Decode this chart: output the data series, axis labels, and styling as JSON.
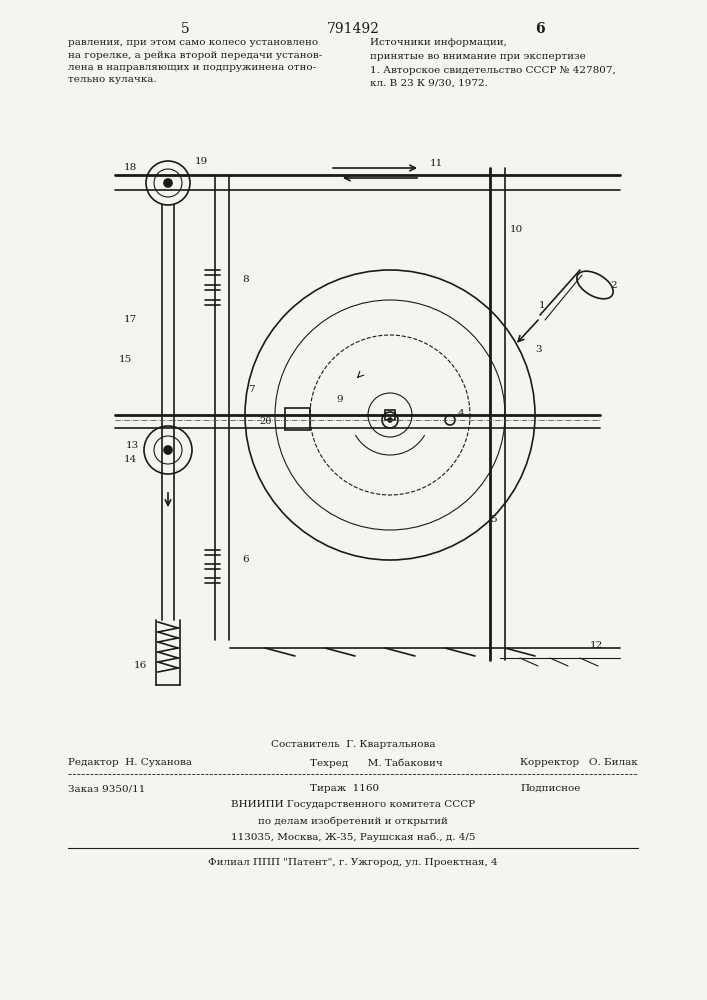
{
  "page_number_left": "5",
  "page_number_center": "791492",
  "page_number_right": "6",
  "text_left": "равления, при этом само колесо установлено\nна горелке, а рейка второй передачи установ-\nлена в направляющих и подпружинена отно-\nтельно кулачка.",
  "text_right_title": "Источники информации,",
  "text_right_sub": "принятые во внимание при экспертизе",
  "text_right_ref": "1. Авторское свидетельство СССР № 427807,\nкл. В 23 К 9/30, 1972.",
  "footer_line1": "Составитель  Г. Квартальнова",
  "footer_line2_left": "Редактор  Н. Суханова",
  "footer_line2_mid": "Техред      М. Табакович",
  "footer_line2_right": "Корректор   О. Билак",
  "footer_line3_left": "Заказ 9350/11",
  "footer_line3_mid": "Тираж  1160",
  "footer_line3_right": "Подписное",
  "footer_line4": "ВНИИПИ Государственного комитета СССР",
  "footer_line5": "по делам изобретений и открытий",
  "footer_line6": "113035, Москва, Ж-35, Раушская наб., д. 4/5",
  "footer_line7": "Филиал ППП \"Патент\", г. Ужгород, ул. Проектная, 4",
  "bg_color": "#f5f5f0",
  "line_color": "#1a1a1a"
}
